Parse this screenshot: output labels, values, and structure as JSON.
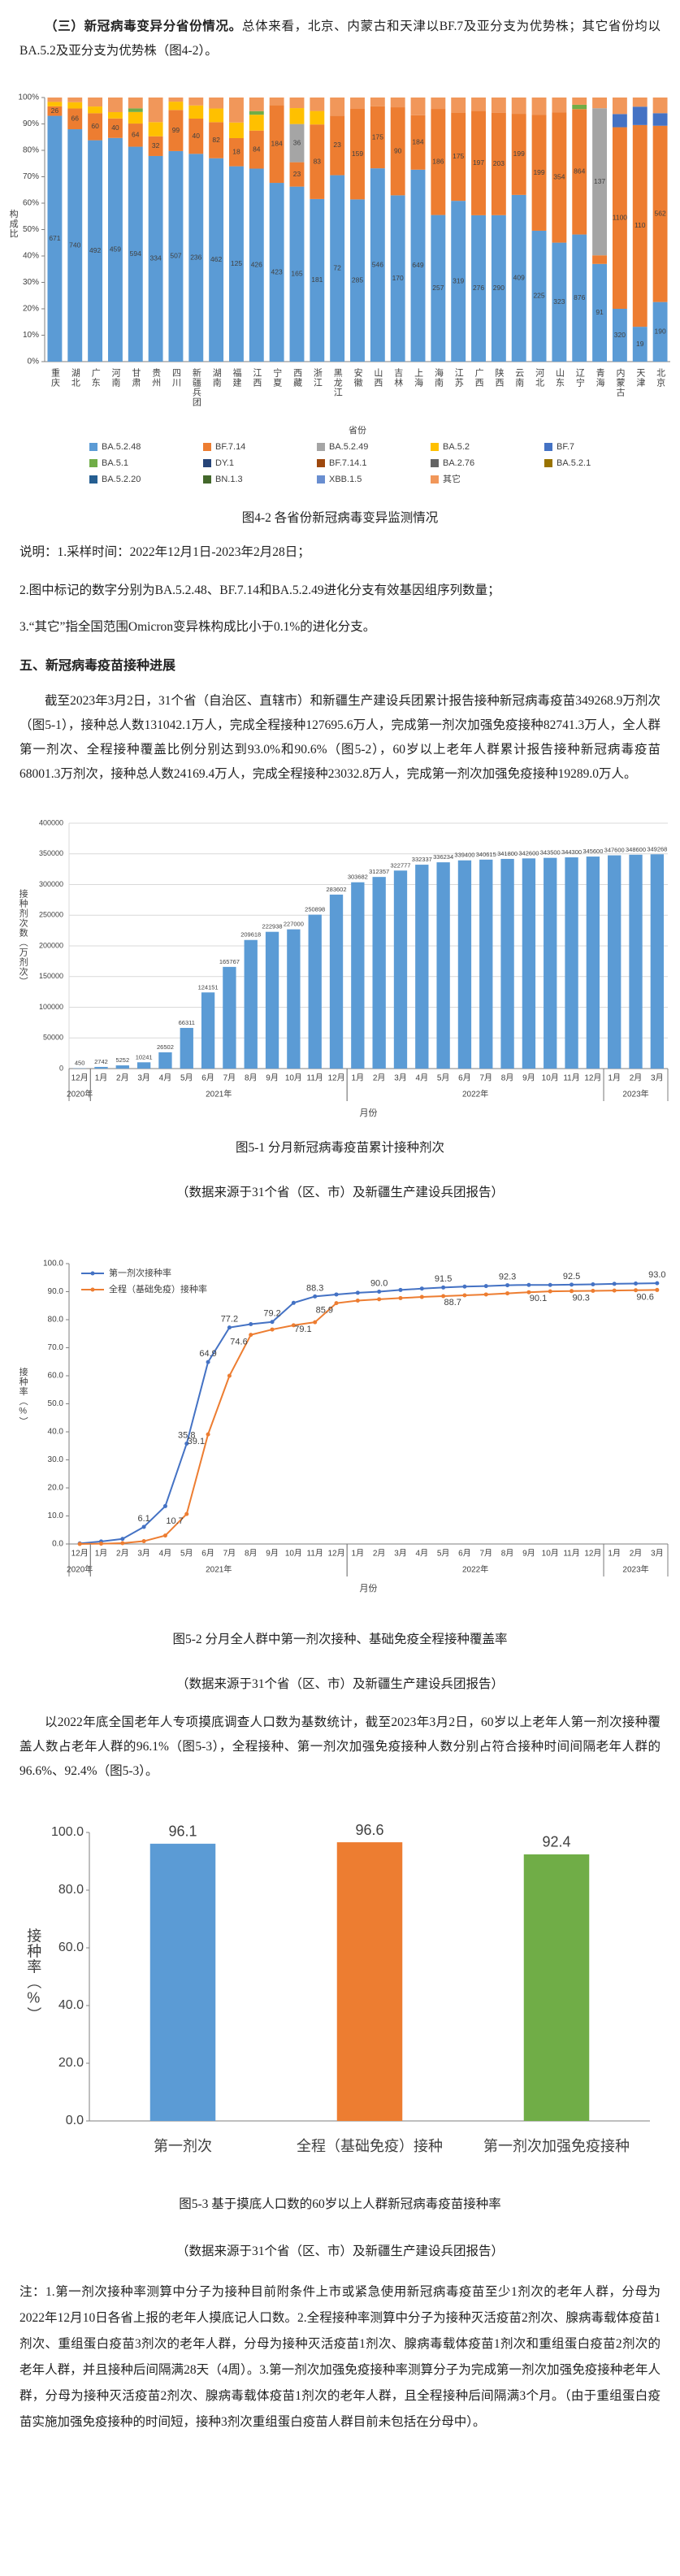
{
  "text": {
    "intro_bold": "（三）新冠病毒变异分省份情况。",
    "intro": "总体来看，北京、内蒙古和天津以BF.7及亚分支为优势株；其它省份均以BA.5.2及亚分支为优势株（图4-2）。",
    "notes_4_2": [
      "说明：1.采样时间：2022年12月1日-2023年2月28日；",
      "2.图中标记的数字分别为BA.5.2.48、BF.7.14和BA.5.2.49进化分支有效基因组序列数量；",
      "3.“其它”指全国范围Omicron变异株构成比小于0.1%的进化分支。"
    ],
    "heading": "五、新冠病毒疫苗接种进展",
    "para1": "截至2023年3月2日，31个省（自治区、直辖市）和新疆生产建设兵团累计报告接种新冠病毒疫苗349268.9万剂次（图5-1），接种总人数131042.1万人，完成全程接种127695.6万人，完成第一剂次加强免疫接种82741.3万人，全人群第一剂次、全程接种覆盖比例分别达到93.0%和90.6%（图5-2），60岁以上老年人群累计报告接种新冠病毒疫苗68001.3万剂次，接种总人数24169.4万人，完成全程接种23032.8万人，完成第一剂次加强免疫接种19289.0万人。",
    "para2": "以2022年底全国老年人专项摸底调查人口数为基数统计，截至2023年3月2日，60岁以上老年人第一剂次接种覆盖人数占老年人群的96.1%（图5-3），全程接种、第一剂次加强免疫接种人数分别占符合接种时间间隔老年人群的96.6%、92.4%（图5-3）。",
    "notes_5_3": "注：1.第一剂次接种率测算中分子为接种目前附条件上市或紧急使用新冠病毒疫苗至少1剂次的老年人群，分母为2022年12月10日各省上报的老年人摸底记人口数。2.全程接种率测算中分子为接种灭活疫苗2剂次、腺病毒载体疫苗1剂次、重组蛋白疫苗3剂次的老年人群，分母为接种灭活疫苗1剂次、腺病毒载体疫苗1剂次和重组蛋白疫苗2剂次的老年人群，并且接种后间隔满28天（4周）。3.第一剂次加强免疫接种率测算分子为完成第一剂次加强免疫接种老年人群，分母为接种灭活疫苗2剂次、腺病毒载体疫苗1剂次的老年人群，且全程接种后间隔满3个月。（由于重组蛋白疫苗实施加强免疫接种的时间短，接种3剂次重组蛋白疫苗人群目前未包括在分母中）。"
  },
  "chart_data": [
    {
      "type": "bar",
      "stacking": "percent",
      "caption": "图4-2    各省份新冠病毒变异监测情况",
      "y_label": "构成比",
      "x_label": "省份",
      "grid": false,
      "categories": [
        "重庆",
        "湖北",
        "广东",
        "河南",
        "甘肃",
        "贵州",
        "四川",
        "新疆兵团",
        "湖南",
        "福建",
        "江西",
        "宁夏",
        "西藏",
        "浙江",
        "黑龙江",
        "安徽",
        "山西",
        "吉林",
        "上海",
        "海南",
        "江苏",
        "广西",
        "陕西",
        "云南",
        "河北",
        "山东",
        "辽宁",
        "青海",
        "内蒙古",
        "天津",
        "北京"
      ],
      "ylim": [
        0,
        100
      ],
      "yticks": [
        {
          "value": 0,
          "label": "0%"
        },
        {
          "value": 10,
          "label": "10%"
        },
        {
          "value": 20,
          "label": "20%"
        },
        {
          "value": 30,
          "label": "30%"
        },
        {
          "value": 40,
          "label": "40%"
        },
        {
          "value": 50,
          "label": "50%"
        },
        {
          "value": 60,
          "label": "60%"
        },
        {
          "value": 70,
          "label": "70%"
        },
        {
          "value": 80,
          "label": "80%"
        },
        {
          "value": 90,
          "label": "90%"
        },
        {
          "value": 100,
          "label": "100%"
        }
      ],
      "series": [
        {
          "name": "BA.5.2.48",
          "color": "#5b9bd5",
          "show_labels": true,
          "values": [
            671,
            740,
            492,
            459,
            594,
            334,
            507,
            236,
            462,
            125,
            426,
            423,
            165,
            181,
            72,
            285,
            546,
            170,
            649,
            257,
            319,
            276,
            290,
            409,
            225,
            323,
            876,
            91,
            320,
            19,
            190
          ]
        },
        {
          "name": "BF.7.14",
          "color": "#ed7d31",
          "show_labels": true,
          "values": [
            26,
            66,
            60,
            40,
            64,
            32,
            99,
            40,
            82,
            18,
            84,
            184,
            23,
            83,
            23,
            159,
            175,
            90,
            184,
            186,
            175,
            197,
            203,
            199,
            199,
            354,
            864,
            8,
            1100,
            110,
            562
          ]
        },
        {
          "name": "BA.5.2.49",
          "color": "#a5a5a5",
          "show_labels": true,
          "values": [
            0,
            0,
            0,
            0,
            0,
            0,
            0,
            0,
            0,
            0,
            0,
            0,
            36,
            0,
            0,
            0,
            0,
            0,
            0,
            0,
            0,
            0,
            0,
            0,
            0,
            0,
            0,
            137,
            0,
            0,
            0
          ]
        },
        {
          "name": "BA.5.2",
          "color": "#ffc000",
          "values": [
            12,
            20,
            15,
            13,
            32,
            23,
            20,
            15,
            31,
            10,
            35,
            0,
            15,
            15,
            0,
            0,
            0,
            0,
            0,
            0,
            0,
            0,
            0,
            0,
            0,
            0,
            0,
            0,
            0,
            0,
            0
          ]
        },
        {
          "name": "BF.7",
          "color": "#4472c4",
          "values": [
            0,
            0,
            0,
            0,
            0,
            0,
            0,
            0,
            0,
            0,
            0,
            0,
            0,
            0,
            0,
            0,
            0,
            0,
            0,
            0,
            0,
            0,
            0,
            0,
            0,
            0,
            0,
            0,
            80,
            10,
            40
          ]
        },
        {
          "name": "BA.5.1",
          "color": "#70ad47",
          "values": [
            0,
            0,
            0,
            0,
            10,
            0,
            0,
            0,
            0,
            0,
            8,
            0,
            0,
            0,
            0,
            0,
            0,
            0,
            0,
            0,
            0,
            0,
            0,
            0,
            0,
            0,
            30,
            0,
            0,
            0,
            0
          ]
        },
        {
          "name": "DY.1",
          "color": "#264478",
          "values": [
            0,
            0,
            0,
            0,
            0,
            0,
            0,
            0,
            0,
            0,
            0,
            0,
            0,
            0,
            0,
            0,
            0,
            0,
            0,
            0,
            0,
            0,
            0,
            0,
            0,
            0,
            0,
            0,
            0,
            0,
            0
          ]
        },
        {
          "name": "BF.7.14.1",
          "color": "#9e480e",
          "values": [
            0,
            0,
            0,
            0,
            0,
            0,
            0,
            0,
            0,
            0,
            0,
            0,
            0,
            0,
            0,
            0,
            0,
            0,
            0,
            0,
            0,
            0,
            0,
            0,
            0,
            0,
            0,
            0,
            0,
            0,
            0
          ]
        },
        {
          "name": "BA.2.76",
          "color": "#636363",
          "values": [
            0,
            0,
            0,
            0,
            0,
            0,
            0,
            0,
            0,
            0,
            0,
            0,
            0,
            0,
            0,
            0,
            0,
            0,
            0,
            0,
            0,
            0,
            0,
            0,
            0,
            0,
            0,
            0,
            0,
            0,
            0
          ]
        },
        {
          "name": "BA.5.2.1",
          "color": "#997300",
          "values": [
            0,
            0,
            0,
            0,
            0,
            0,
            0,
            0,
            0,
            0,
            0,
            0,
            0,
            0,
            0,
            0,
            0,
            0,
            0,
            0,
            0,
            0,
            0,
            0,
            0,
            0,
            0,
            0,
            0,
            0,
            0
          ]
        },
        {
          "name": "BA.5.2.20",
          "color": "#255e91",
          "values": [
            0,
            0,
            0,
            0,
            0,
            0,
            0,
            0,
            0,
            0,
            0,
            0,
            0,
            0,
            0,
            0,
            0,
            0,
            0,
            0,
            0,
            0,
            0,
            0,
            0,
            0,
            0,
            0,
            0,
            0,
            0
          ]
        },
        {
          "name": "BN.1.3",
          "color": "#43682b",
          "values": [
            0,
            0,
            0,
            0,
            0,
            0,
            0,
            0,
            0,
            0,
            0,
            0,
            0,
            0,
            0,
            0,
            0,
            0,
            0,
            0,
            0,
            0,
            0,
            0,
            0,
            0,
            0,
            0,
            0,
            0,
            0
          ]
        },
        {
          "name": "XBB.1.5",
          "color": "#698ed0",
          "values": [
            0,
            0,
            0,
            0,
            0,
            0,
            0,
            0,
            0,
            0,
            0,
            0,
            0,
            0,
            0,
            0,
            0,
            0,
            0,
            0,
            0,
            0,
            0,
            0,
            0,
            0,
            0,
            0,
            0,
            0,
            0
          ]
        },
        {
          "name": "其它",
          "color": "#f1975a",
          "values": [
            12,
            15,
            20,
            30,
            30,
            40,
            10,
            9,
            25,
            16,
            30,
            18,
            10,
            15,
            7,
            20,
            25,
            10,
            60,
            20,
            30,
            25,
            30,
            40,
            30,
            40,
            50,
            10,
            100,
            5,
            50
          ]
        }
      ]
    },
    {
      "type": "bar",
      "caption": "图5-1    分月新冠病毒疫苗累计接种剂次",
      "source": "（数据来源于31个省（区、市）及新疆生产建设兵团报告）",
      "y_label": "接种剂次数（万剂次）",
      "x_label": "月份",
      "grid": true,
      "color": "#5b9bd5",
      "categories": [
        "12月",
        "1月",
        "2月",
        "3月",
        "4月",
        "5月",
        "6月",
        "7月",
        "8月",
        "9月",
        "10月",
        "11月",
        "12月",
        "1月",
        "2月",
        "3月",
        "4月",
        "5月",
        "6月",
        "7月",
        "8月",
        "9月",
        "10月",
        "11月",
        "12月",
        "1月",
        "2月",
        "3月"
      ],
      "year_groups": [
        {
          "label": "2020年",
          "first": 0,
          "last": 0
        },
        {
          "label": "2021年",
          "first": 1,
          "last": 12
        },
        {
          "label": "2022年",
          "first": 13,
          "last": 24
        },
        {
          "label": "2023年",
          "first": 25,
          "last": 27
        }
      ],
      "values": [
        450,
        2742,
        5252,
        10241,
        26502,
        66311,
        124151,
        165767,
        209618,
        222938,
        227000,
        250898,
        283602,
        303682,
        312357,
        322777,
        332337,
        336234,
        339400,
        340615,
        341800,
        342600,
        343500,
        344300,
        345600,
        347600,
        348600,
        349268
      ],
      "ylim": [
        0,
        400000
      ],
      "yticks": [
        0,
        50000,
        100000,
        150000,
        200000,
        250000,
        300000,
        350000,
        400000
      ]
    },
    {
      "type": "line",
      "caption": "图5-2    分月全人群中第一剂次接种、基础免疫全程接种覆盖率",
      "source": "（数据来源于31个省（区、市）及新疆生产建设兵团报告）",
      "y_label": "接种率（%）",
      "x_label": "月份",
      "grid": false,
      "legend": "top-left",
      "categories": [
        "12月",
        "1月",
        "2月",
        "3月",
        "4月",
        "5月",
        "6月",
        "7月",
        "8月",
        "9月",
        "10月",
        "11月",
        "12月",
        "1月",
        "2月",
        "3月",
        "4月",
        "5月",
        "6月",
        "7月",
        "8月",
        "9月",
        "10月",
        "11月",
        "12月",
        "1月",
        "2月",
        "3月"
      ],
      "year_groups": [
        {
          "label": "2020年",
          "first": 0,
          "last": 0
        },
        {
          "label": "2021年",
          "first": 1,
          "last": 12
        },
        {
          "label": "2022年",
          "first": 13,
          "last": 24
        },
        {
          "label": "2023年",
          "first": 25,
          "last": 27
        }
      ],
      "ylim": [
        0,
        100
      ],
      "yticks": [
        {
          "value": 0,
          "label": "0.0"
        },
        {
          "value": 10,
          "label": "10.0"
        },
        {
          "value": 20,
          "label": "20.0"
        },
        {
          "value": 30,
          "label": "30.0"
        },
        {
          "value": 40,
          "label": "40.0"
        },
        {
          "value": 50,
          "label": "50.0"
        },
        {
          "value": 60,
          "label": "60.0"
        },
        {
          "value": 70,
          "label": "70.0"
        },
        {
          "value": 80,
          "label": "80.0"
        },
        {
          "value": 90,
          "label": "90.0"
        },
        {
          "value": 100,
          "label": "100.0"
        }
      ],
      "series": [
        {
          "name": "第一剂次接种率",
          "color": "#4472c4",
          "values": [
            0.2,
            0.9,
            1.8,
            6.1,
            13.5,
            35.8,
            64.9,
            77.2,
            78.4,
            79.2,
            86.0,
            88.3,
            89.0,
            89.6,
            90.0,
            90.6,
            91.1,
            91.5,
            91.8,
            92.0,
            92.3,
            92.4,
            92.4,
            92.5,
            92.6,
            92.8,
            92.9,
            93.0
          ],
          "value_labels": [
            null,
            null,
            null,
            "6.1",
            null,
            "35.8",
            "64.9",
            "77.2",
            null,
            "79.2",
            null,
            "88.3",
            null,
            null,
            "90.0",
            null,
            null,
            "91.5",
            null,
            null,
            "92.3",
            null,
            null,
            "92.5",
            null,
            null,
            null,
            "93.0"
          ]
        },
        {
          "name": "全程（基础免疫）接种率",
          "color": "#ed7d31",
          "values": [
            0,
            0.1,
            0.3,
            1.0,
            3.0,
            10.7,
            39.1,
            60.0,
            74.6,
            76.5,
            78.0,
            79.1,
            85.9,
            86.8,
            87.3,
            87.7,
            88.1,
            88.4,
            88.7,
            89.0,
            89.4,
            89.8,
            90.1,
            90.2,
            90.3,
            90.4,
            90.5,
            90.6
          ],
          "value_labels": [
            null,
            null,
            null,
            null,
            null,
            "10.7",
            "39.1",
            null,
            "74.6",
            null,
            null,
            "79.1",
            "85.9",
            null,
            null,
            null,
            null,
            null,
            "88.7",
            null,
            null,
            null,
            "90.1",
            null,
            "90.3",
            null,
            null,
            "90.6"
          ]
        }
      ]
    },
    {
      "type": "bar",
      "caption": "图5-3    基于摸底人口数的60岁以上人群新冠病毒疫苗接种率",
      "source": "（数据来源于31个省（区、市）及新疆生产建设兵团报告）",
      "y_label": "接种率（%）",
      "grid": false,
      "categories": [
        "第一剂次",
        "全程（基础免疫）接种",
        "第一剂次加强免疫接种"
      ],
      "values": [
        96.1,
        96.6,
        92.4
      ],
      "colors": [
        "#5b9bd5",
        "#ed7d31",
        "#70ad47"
      ],
      "ylim": [
        0,
        100
      ],
      "yticks": [
        {
          "value": 0,
          "label": "0.0"
        },
        {
          "value": 20,
          "label": "20.0"
        },
        {
          "value": 40,
          "label": "40.0"
        },
        {
          "value": 60,
          "label": "60.0"
        },
        {
          "value": 80,
          "label": "80.0"
        },
        {
          "value": 100,
          "label": "100.0"
        }
      ]
    }
  ]
}
